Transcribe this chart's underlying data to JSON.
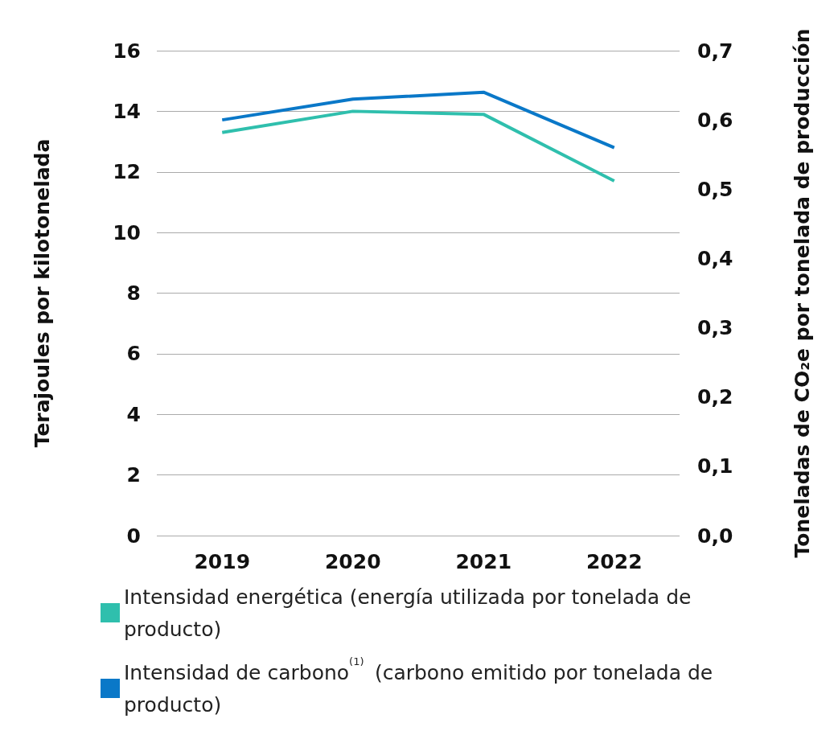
{
  "chart_data": {
    "type": "line",
    "ylabel": "Terajoules por kilotonelada",
    "y2label": "Toneladas de CO₂e por tonelada de producción",
    "categories": [
      "2019",
      "2020",
      "2021",
      "2022"
    ],
    "series": [
      {
        "name": "Intensidad energética (energía utilizada por tonelada de producto)",
        "color": "#2fbfad",
        "values": [
          13.3,
          14.0,
          13.9,
          11.7
        ]
      },
      {
        "name": "Intensidad de carbono$^{(1)}$ (carbono emitido por tonelada de producto)",
        "color": "#0a78c8",
        "values": [
          0.6,
          0.63,
          0.64,
          0.56
        ],
        "axis": "y2"
      }
    ],
    "ylim": [
      0,
      16
    ],
    "yticks": [
      0,
      2,
      4,
      6,
      8,
      10,
      12,
      14,
      16
    ],
    "y2lim": [
      0,
      0.7
    ],
    "y2ticks": [
      {
        "value": 0,
        "label": "0,0"
      },
      {
        "value": 0.1,
        "label": "0,1"
      },
      {
        "value": 0.2,
        "label": "0,2"
      },
      {
        "value": 0.3,
        "label": "0,3"
      },
      {
        "value": 0.4,
        "label": "0,4"
      },
      {
        "value": 0.5,
        "label": "0,5"
      },
      {
        "value": 0.6,
        "label": "0,6"
      },
      {
        "value": 0.7,
        "label": "0,7"
      }
    ],
    "grid": "y",
    "legend": "bottom",
    "marker": "none",
    "line_style": "solid"
  }
}
